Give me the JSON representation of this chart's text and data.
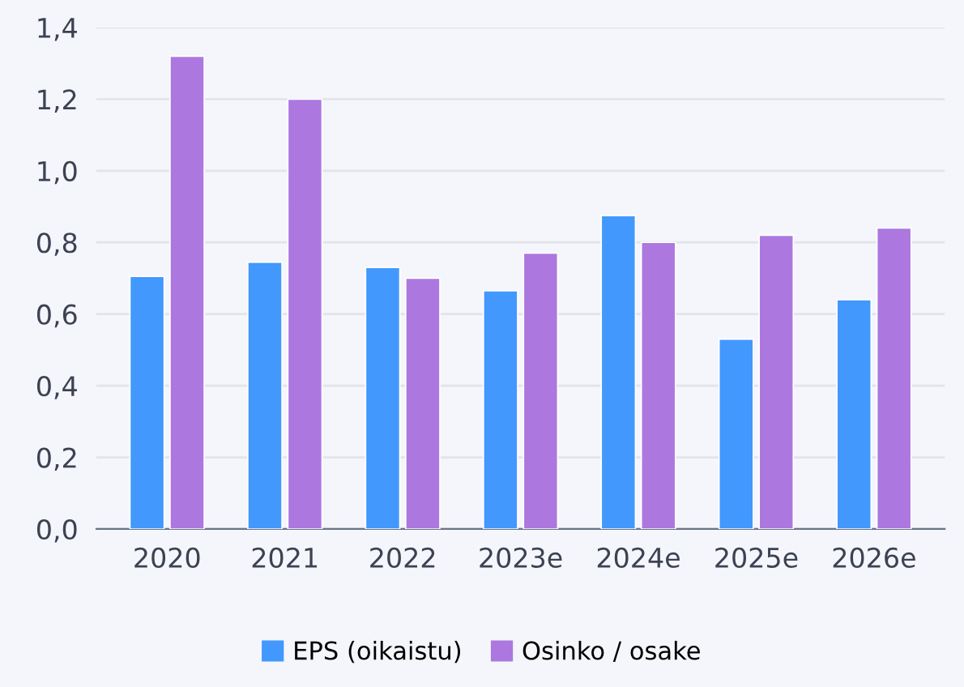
{
  "chart_data": {
    "type": "bar",
    "categories": [
      "2020",
      "2021",
      "2022",
      "2023e",
      "2024e",
      "2025e",
      "2026e"
    ],
    "series": [
      {
        "name": "EPS (oikaistu)",
        "color": "#4298fd",
        "values": [
          0.705,
          0.745,
          0.73,
          0.665,
          0.875,
          0.53,
          0.64
        ]
      },
      {
        "name": "Osinko / osake",
        "color": "#ac78df",
        "values": [
          1.32,
          1.2,
          0.7,
          0.77,
          0.8,
          0.82,
          0.84
        ]
      }
    ],
    "ylim": [
      0,
      1.4
    ],
    "yticks": [
      {
        "value": 0,
        "label": "0,0"
      },
      {
        "value": 0.2,
        "label": "0,2"
      },
      {
        "value": 0.4,
        "label": "0,4"
      },
      {
        "value": 0.6,
        "label": "0,6"
      },
      {
        "value": 0.8,
        "label": "0,8"
      },
      {
        "value": 1.0,
        "label": "1,0"
      },
      {
        "value": 1.2,
        "label": "1,2"
      },
      {
        "value": 1.4,
        "label": "1,4"
      }
    ],
    "grid": "y",
    "legend": "bottom"
  }
}
